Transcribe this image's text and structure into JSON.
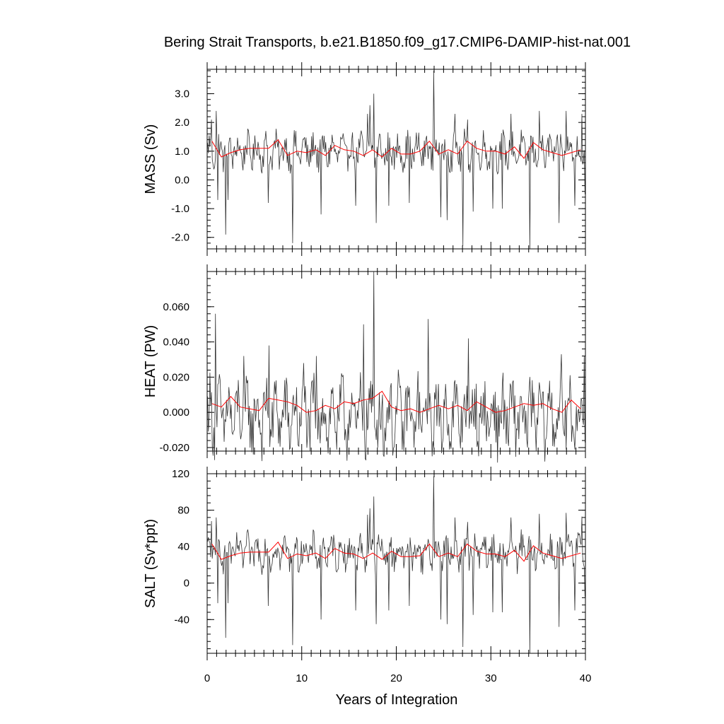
{
  "chart_data": {
    "type": "line",
    "title": "Bering Strait Transports, b.e21.B1850.f09_g17.CMIP6-DAMIP-hist-nat.001",
    "xlabel": "Years of Integration",
    "xlim": [
      0,
      40
    ],
    "xticks": [
      "0",
      "10",
      "20",
      "30",
      "40"
    ],
    "colors": {
      "monthly": "#333333",
      "annual": "#ff0000"
    },
    "panels": [
      {
        "id": "mass",
        "ylabel": "MASS (Sv)",
        "ylim": [
          -2.4,
          3.85
        ],
        "ytick_values": [
          -2,
          -1,
          0,
          1,
          2,
          3
        ],
        "ytick_labels": [
          "-2.0",
          "-1.0",
          "0.0",
          "1.0",
          "2.0",
          "3.0"
        ],
        "minor_step": 0.2,
        "series": [
          {
            "kind": "monthly",
            "mean": 1.0,
            "amp": 0.9,
            "spikes": [
              [
                0.4,
                2.1
              ],
              [
                0.9,
                2.4
              ],
              [
                1.1,
                -0.7
              ],
              [
                1.9,
                -1.9
              ],
              [
                2.2,
                -0.7
              ],
              [
                6.4,
                -0.8
              ],
              [
                9.0,
                -2.2
              ],
              [
                12.0,
                -1.2
              ],
              [
                15.7,
                -0.9
              ],
              [
                16.9,
                2.3
              ],
              [
                17.2,
                2.6
              ],
              [
                17.6,
                3.0
              ],
              [
                17.8,
                -1.5
              ],
              [
                19.2,
                -0.9
              ],
              [
                21.3,
                -0.8
              ],
              [
                23.9,
                3.8
              ],
              [
                24.7,
                -1.3
              ],
              [
                25.3,
                -1.4
              ],
              [
                26.2,
                2.3
              ],
              [
                27.0,
                -2.3
              ],
              [
                27.5,
                2.1
              ],
              [
                28.1,
                -1.1
              ],
              [
                30.2,
                -1.0
              ],
              [
                31.2,
                -1.0
              ],
              [
                32.1,
                2.3
              ],
              [
                34.1,
                -2.4
              ],
              [
                35.1,
                2.4
              ],
              [
                37.2,
                -1.5
              ],
              [
                37.9,
                2.4
              ],
              [
                38.8,
                -0.9
              ],
              [
                39.6,
                2.3
              ],
              [
                39.9,
                -0.5
              ]
            ]
          },
          {
            "kind": "annual",
            "x": [
              0.5,
              1.5,
              2.5,
              3.5,
              4.5,
              5.5,
              6.5,
              7.5,
              8.5,
              9.5,
              10.5,
              11.5,
              12.5,
              13.5,
              14.5,
              15.5,
              16.5,
              17.5,
              18.5,
              19.5,
              20.5,
              21.5,
              22.5,
              23.5,
              24.5,
              25.5,
              26.5,
              27.5,
              28.5,
              29.5,
              30.5,
              31.5,
              32.5,
              33.5,
              34.5,
              35.5,
              36.5,
              37.5,
              38.5,
              39.5
            ],
            "values": [
              1.35,
              0.8,
              0.95,
              1.05,
              1.1,
              1.1,
              1.1,
              1.4,
              0.85,
              1.0,
              0.95,
              1.05,
              0.85,
              1.2,
              1.05,
              1.0,
              0.85,
              1.05,
              0.8,
              1.1,
              0.9,
              0.9,
              1.0,
              1.35,
              0.9,
              1.05,
              0.9,
              1.35,
              1.1,
              1.0,
              1.0,
              0.9,
              1.15,
              0.75,
              1.3,
              1.05,
              0.95,
              0.85,
              0.95,
              1.05
            ]
          }
        ]
      },
      {
        "id": "heat",
        "ylabel": "HEAT (PW)",
        "ylim": [
          -0.022,
          0.08
        ],
        "ytick_values": [
          -0.02,
          0.0,
          0.02,
          0.04,
          0.06
        ],
        "ytick_labels": [
          "-0.020",
          "0.000",
          "0.020",
          "0.040",
          "0.060"
        ],
        "minor_step": 0.004,
        "series": [
          {
            "kind": "monthly",
            "mean": -0.002,
            "amp": 0.03,
            "spikes": [
              [
                0.8,
                0.056
              ],
              [
                3.8,
                0.032
              ],
              [
                6.5,
                0.038
              ],
              [
                10.2,
                0.028
              ],
              [
                11.5,
                0.032
              ],
              [
                16.5,
                0.05
              ],
              [
                17.6,
                0.08
              ],
              [
                18.0,
                -0.02
              ],
              [
                21.8,
                -0.02
              ],
              [
                23.3,
                0.053
              ],
              [
                27.6,
                0.042
              ],
              [
                33.8,
                -0.02
              ],
              [
                37.4,
                0.033
              ],
              [
                39.8,
                0.032
              ]
            ]
          },
          {
            "kind": "annual",
            "x": [
              0.5,
              1.5,
              2.5,
              3.5,
              4.5,
              5.5,
              6.5,
              7.5,
              8.5,
              9.5,
              10.5,
              11.5,
              12.5,
              13.5,
              14.5,
              15.5,
              16.5,
              17.5,
              18.5,
              19.5,
              20.5,
              21.5,
              22.5,
              23.5,
              24.5,
              25.5,
              26.5,
              27.5,
              28.5,
              29.5,
              30.5,
              31.5,
              32.5,
              33.5,
              34.5,
              35.5,
              36.5,
              37.5,
              38.5,
              39.5
            ],
            "values": [
              0.005,
              0.003,
              0.009,
              0.003,
              0.002,
              0.001,
              0.008,
              0.007,
              0.006,
              0.004,
              0.0,
              0.001,
              0.004,
              0.002,
              0.006,
              0.005,
              0.007,
              0.008,
              0.012,
              0.003,
              0.001,
              0.002,
              0.0,
              0.002,
              0.004,
              0.002,
              0.004,
              0.001,
              0.006,
              0.003,
              0.0,
              0.001,
              0.003,
              0.005,
              0.004,
              0.005,
              0.002,
              0.0,
              0.007,
              0.002
            ]
          }
        ]
      },
      {
        "id": "salt",
        "ylabel": "SALT (Sv*ppt)",
        "ylim": [
          -77,
          120
        ],
        "ytick_values": [
          -40,
          0,
          40,
          80,
          120
        ],
        "ytick_labels": [
          "-40",
          "0",
          "40",
          "80",
          "120"
        ],
        "minor_step": 8,
        "series": [
          {
            "kind": "monthly",
            "mean": 34,
            "amp": 28,
            "spikes": [
              [
                0.4,
                68
              ],
              [
                0.9,
                72
              ],
              [
                1.1,
                -22
              ],
              [
                1.9,
                -60
              ],
              [
                2.2,
                -22
              ],
              [
                6.4,
                -25
              ],
              [
                9.0,
                -68
              ],
              [
                12.0,
                -40
              ],
              [
                15.7,
                -30
              ],
              [
                16.9,
                75
              ],
              [
                17.2,
                82
              ],
              [
                17.6,
                95
              ],
              [
                17.8,
                -45
              ],
              [
                19.2,
                -30
              ],
              [
                21.3,
                -25
              ],
              [
                23.9,
                117
              ],
              [
                24.7,
                -40
              ],
              [
                25.3,
                -45
              ],
              [
                26.2,
                72
              ],
              [
                27.0,
                -70
              ],
              [
                27.5,
                67
              ],
              [
                28.1,
                -35
              ],
              [
                30.2,
                -32
              ],
              [
                31.2,
                -32
              ],
              [
                32.1,
                72
              ],
              [
                34.1,
                -77
              ],
              [
                35.1,
                76
              ],
              [
                37.2,
                -48
              ],
              [
                37.9,
                77
              ],
              [
                38.8,
                -30
              ],
              [
                39.6,
                73
              ],
              [
                39.9,
                -15
              ]
            ]
          },
          {
            "kind": "annual",
            "x": [
              0.5,
              1.5,
              2.5,
              3.5,
              4.5,
              5.5,
              6.5,
              7.5,
              8.5,
              9.5,
              10.5,
              11.5,
              12.5,
              13.5,
              14.5,
              15.5,
              16.5,
              17.5,
              18.5,
              19.5,
              20.5,
              21.5,
              22.5,
              23.5,
              24.5,
              25.5,
              26.5,
              27.5,
              28.5,
              29.5,
              30.5,
              31.5,
              32.5,
              33.5,
              34.5,
              35.5,
              36.5,
              37.5,
              38.5,
              39.5
            ],
            "values": [
              43,
              26,
              30,
              33,
              34,
              34,
              34,
              45,
              27,
              32,
              30,
              33,
              27,
              38,
              33,
              32,
              27,
              33,
              26,
              35,
              29,
              29,
              30,
              43,
              29,
              33,
              29,
              43,
              35,
              32,
              32,
              29,
              36,
              24,
              41,
              33,
              30,
              27,
              30,
              33
            ]
          }
        ]
      }
    ]
  }
}
